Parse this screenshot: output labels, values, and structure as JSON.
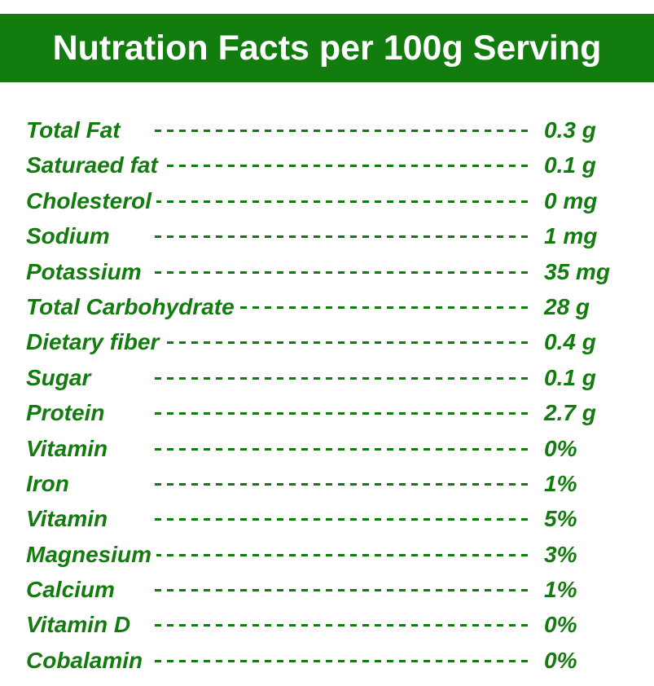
{
  "header": {
    "title": "Nutration Facts per 100g Serving"
  },
  "colors": {
    "brand_green": "#137c0e",
    "text_green": "#137c0e",
    "background": "#ffffff"
  },
  "rows": [
    {
      "label": "Total Fat",
      "value": "0.3 g"
    },
    {
      "label": "Saturaed fat",
      "value": "0.1 g"
    },
    {
      "label": "Cholesterol",
      "value": "0 mg"
    },
    {
      "label": "Sodium",
      "value": "1 mg"
    },
    {
      "label": "Potassium",
      "value": "35 mg"
    },
    {
      "label": "Total Carbohydrate",
      "value": "28 g"
    },
    {
      "label": "Dietary fiber",
      "value": "0.4 g"
    },
    {
      "label": "Sugar",
      "value": "0.1 g"
    },
    {
      "label": "Protein",
      "value": "2.7 g"
    },
    {
      "label": "Vitamin",
      "value": "0%"
    },
    {
      "label": "Iron",
      "value": "1%"
    },
    {
      "label": "Vitamin",
      "value": "5%"
    },
    {
      "label": "Magnesium",
      "value": "3%"
    },
    {
      "label": "Calcium",
      "value": "1%"
    },
    {
      "label": "Vitamin D",
      "value": "0%"
    },
    {
      "label": "Cobalamin",
      "value": "0%"
    }
  ]
}
